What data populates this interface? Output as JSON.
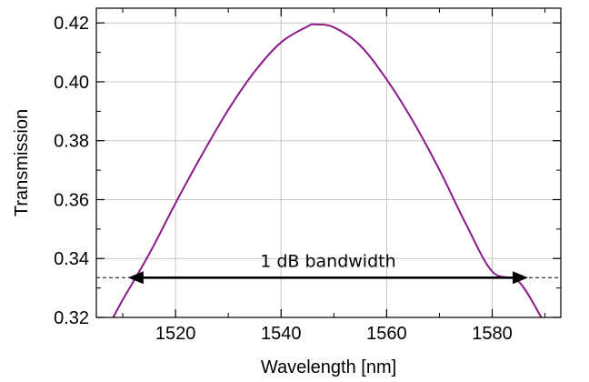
{
  "chart_data": {
    "type": "line",
    "xlabel": "Wavelength [nm]",
    "ylabel": "Transmission",
    "xlim": [
      1505,
      1593
    ],
    "ylim": [
      0.32,
      0.425
    ],
    "grid": true,
    "x_major_ticks": [
      1520,
      1540,
      1560,
      1580
    ],
    "x_tick_labels": [
      "1520",
      "1540",
      "1560",
      "1580"
    ],
    "x_minor_ticks": [
      1510,
      1530,
      1550,
      1570,
      1590
    ],
    "y_major_ticks": [
      0.32,
      0.34,
      0.36,
      0.38,
      0.4,
      0.42
    ],
    "y_tick_labels": [
      "0.32",
      "0.34",
      "0.36",
      "0.38",
      "0.40",
      "0.42"
    ],
    "y_minor_ticks": [
      0.33,
      0.35,
      0.37,
      0.39,
      0.41
    ],
    "series": [
      {
        "color": "#8b1a8b",
        "x": [
          1508.2,
          1510,
          1515,
          1520,
          1525,
          1530,
          1535,
          1540,
          1545,
          1546.5,
          1550,
          1555,
          1560,
          1565,
          1570,
          1575,
          1580,
          1585,
          1589.3
        ],
        "y": [
          0.32,
          0.326,
          0.3415,
          0.3588,
          0.3752,
          0.3905,
          0.4035,
          0.4134,
          0.4188,
          0.4195,
          0.4185,
          0.4123,
          0.4008,
          0.3866,
          0.3701,
          0.3518,
          0.3356,
          0.3322,
          0.32
        ]
      }
    ],
    "annotations": {
      "label": "1 dB bandwidth",
      "threshold_y": 0.3335,
      "arrow_x_start": 1511.0,
      "arrow_x_end": 1586.8,
      "line_color": "#000000"
    }
  }
}
